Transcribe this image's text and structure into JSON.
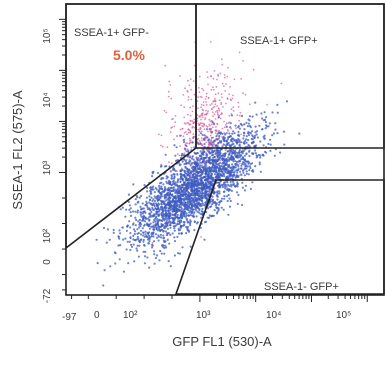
{
  "chart_data": {
    "type": "scatter",
    "title": "",
    "xlabel": "GFP FL1 (530)-A",
    "ylabel": "SSEA-1 FL2 (575)-A",
    "xscale": "log",
    "yscale": "log",
    "x_tick_labels": [
      "-97",
      "0",
      "10²",
      "10³",
      "10⁴",
      "10⁵"
    ],
    "y_tick_labels": [
      "-72",
      "0",
      "10²",
      "10³",
      "10⁴",
      "10⁵"
    ],
    "colors": {
      "pink_population": "#d8589a",
      "blue_population": "#3f5cc0",
      "stat_text": "#e0603a"
    },
    "gates": [
      {
        "name": "SSEA-1+ GFP-",
        "percent_label": "5.0%"
      },
      {
        "name": "SSEA-1+ GFP+"
      },
      {
        "name": "SSEA-1- GFP+"
      }
    ],
    "populations": [
      {
        "name": "pink",
        "center_log": [
          2.1,
          2.9
        ],
        "spread_log": [
          0.35,
          0.55
        ],
        "count": 450
      },
      {
        "name": "blue",
        "center_log": [
          1.9,
          1.7
        ],
        "spread_log": [
          0.55,
          0.55
        ],
        "count": 2600
      }
    ]
  }
}
